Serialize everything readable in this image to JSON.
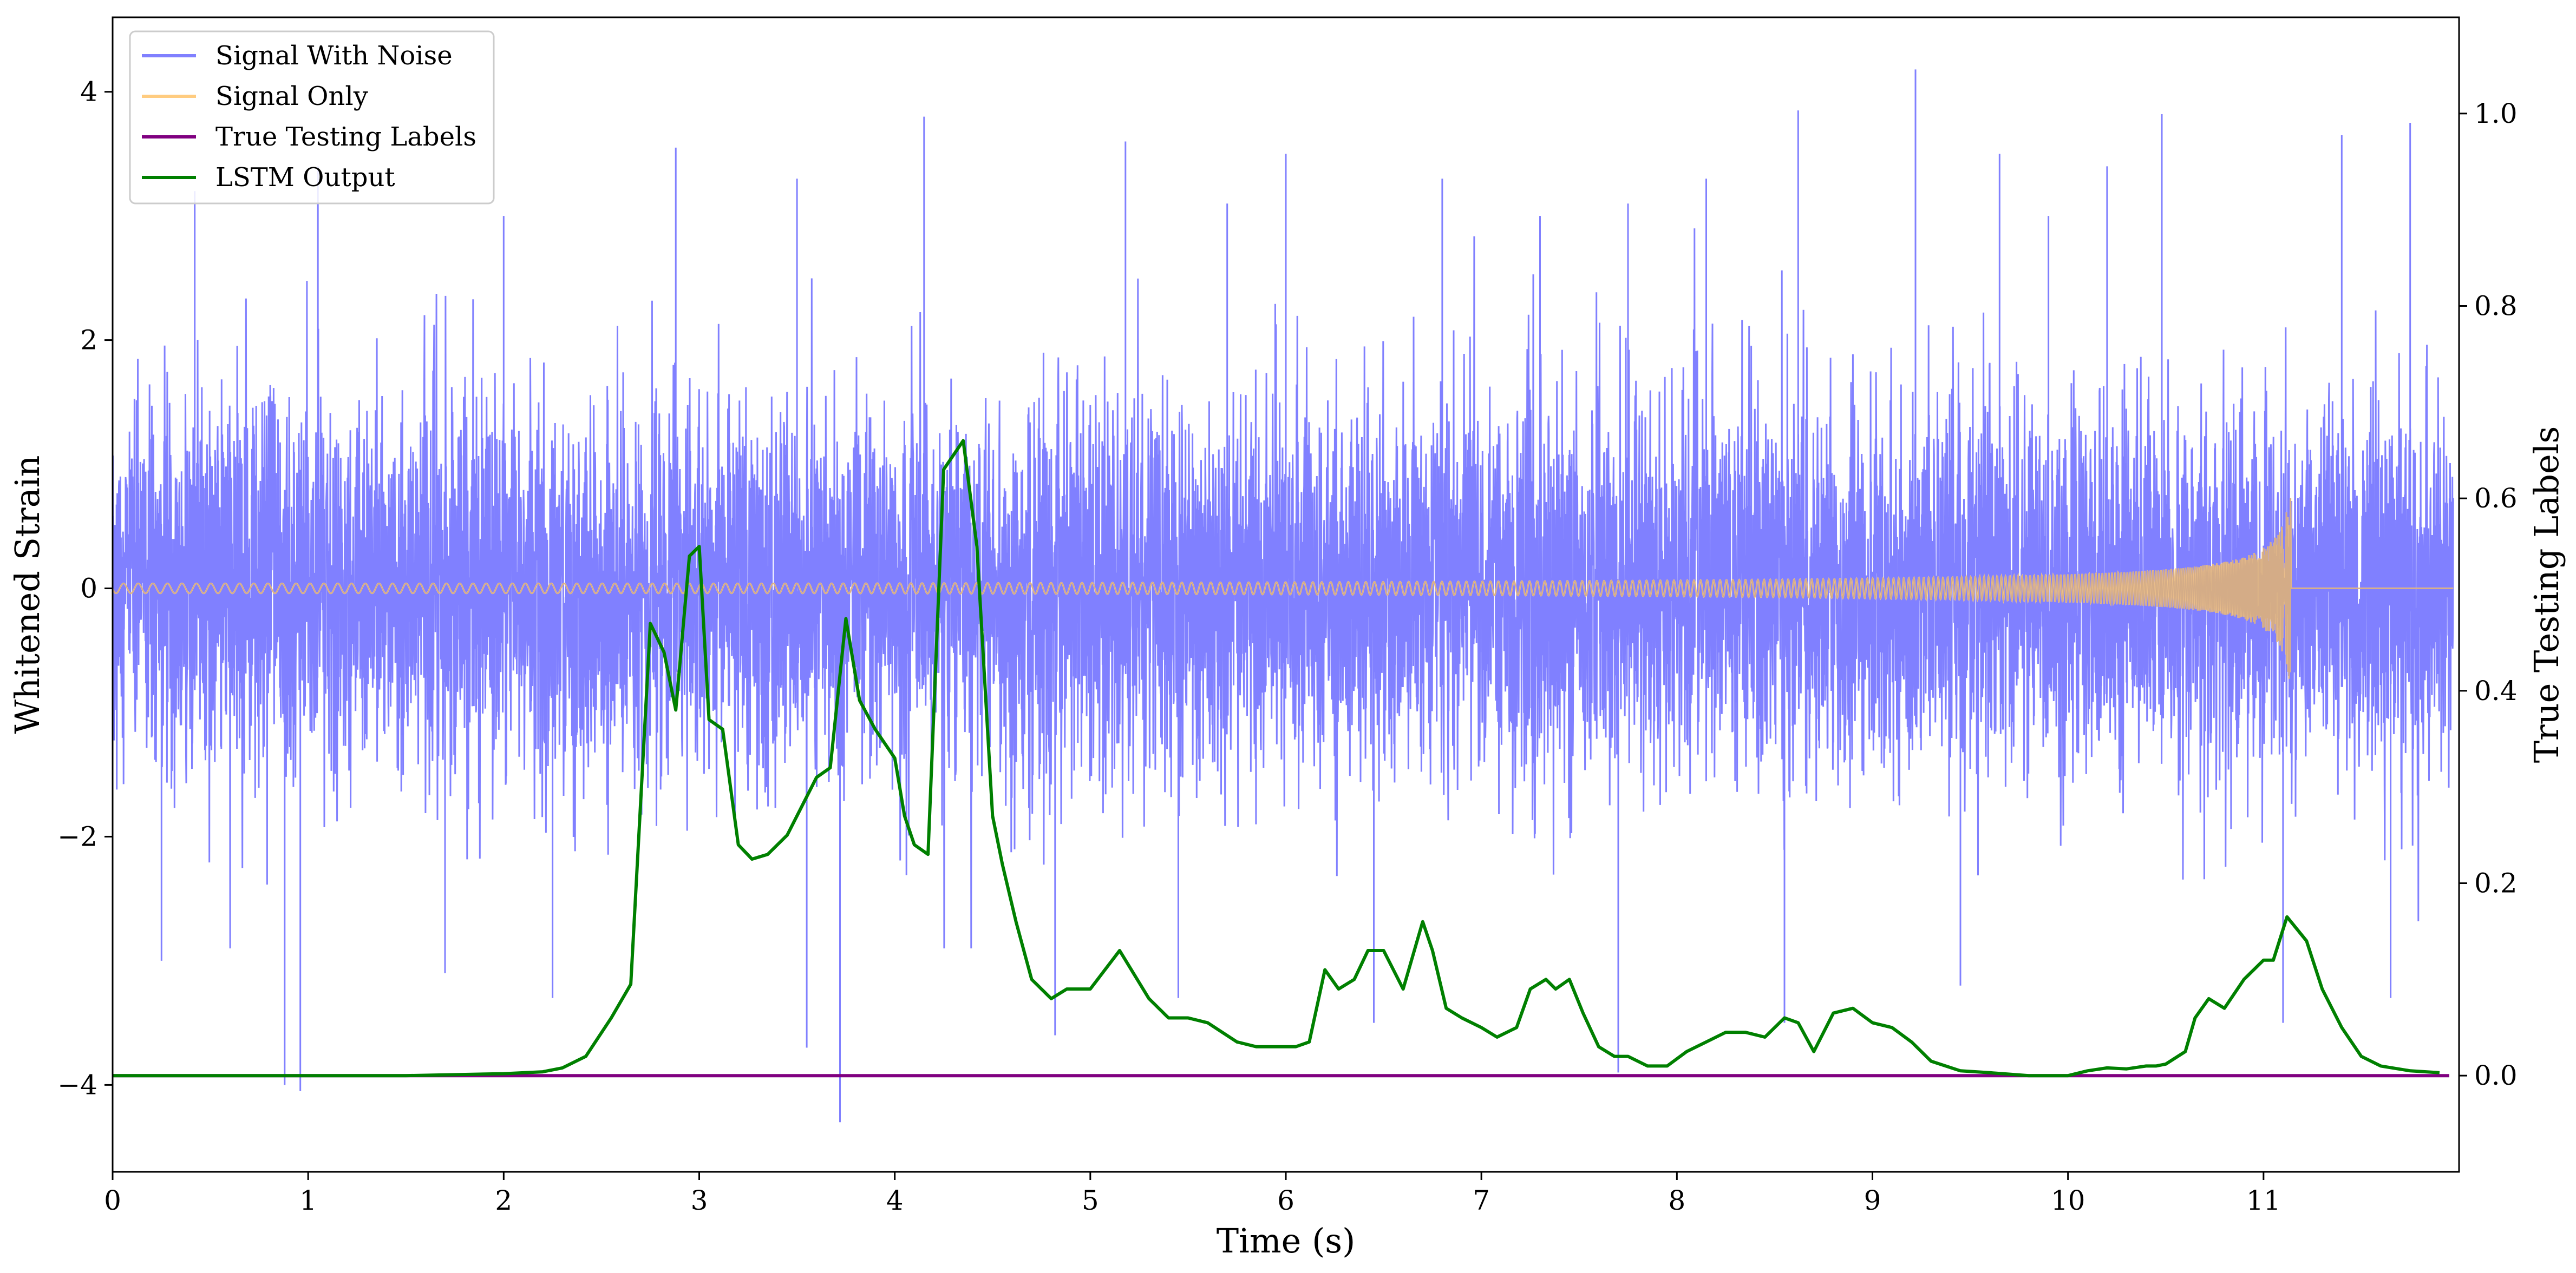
{
  "chart_data": {
    "type": "line",
    "title": "",
    "xlabel": "Time (s)",
    "ylabel": "Whitened Strain",
    "y2label": "True Testing Labels",
    "xlim": [
      0,
      12
    ],
    "ylim": [
      -4.7,
      4.6
    ],
    "y2lim": [
      -0.1,
      1.1
    ],
    "x_ticks": [
      0,
      1,
      2,
      3,
      4,
      5,
      6,
      7,
      8,
      9,
      10,
      11
    ],
    "y_ticks": [
      -4,
      -2,
      0,
      2,
      4
    ],
    "y_tick_labels": [
      "−4",
      "−2",
      "0",
      "2",
      "4"
    ],
    "y2_ticks": [
      0.0,
      0.2,
      0.4,
      0.6,
      0.8,
      1.0
    ],
    "y2_tick_labels": [
      "0.0",
      "0.2",
      "0.4",
      "0.6",
      "0.8",
      "1.0"
    ],
    "grid": false,
    "legend_position": "top-left",
    "series": [
      {
        "name": "Signal With Noise",
        "axis": "left",
        "color": "#8080ff",
        "description_values": "dense whitened noise, roughly |y| < 2 with sparse spikes up to 4.2 and down to -4.3",
        "noise_std": 0.75,
        "spikes": [
          [
            0.88,
            -4.0
          ],
          [
            0.96,
            -4.05
          ],
          [
            3.72,
            -4.3
          ],
          [
            9.22,
            4.18
          ],
          [
            4.15,
            3.8
          ],
          [
            8.62,
            3.85
          ],
          [
            10.48,
            3.82
          ],
          [
            11.75,
            3.75
          ],
          [
            7.7,
            -3.9
          ],
          [
            5.18,
            3.6
          ],
          [
            2.88,
            3.55
          ],
          [
            6.0,
            3.5
          ],
          [
            9.65,
            3.5
          ],
          [
            11.4,
            3.65
          ],
          [
            1.05,
            3.4
          ],
          [
            0.42,
            3.2
          ],
          [
            3.5,
            3.3
          ],
          [
            7.75,
            3.1
          ],
          [
            8.15,
            3.3
          ],
          [
            10.2,
            3.4
          ],
          [
            3.55,
            -3.7
          ],
          [
            4.82,
            -3.6
          ],
          [
            6.45,
            -3.5
          ],
          [
            8.55,
            -3.5
          ],
          [
            11.1,
            -3.5
          ],
          [
            2.25,
            -3.3
          ],
          [
            0.25,
            -3.0
          ],
          [
            1.7,
            -3.1
          ],
          [
            5.45,
            -3.3
          ],
          [
            9.45,
            -3.2
          ],
          [
            11.65,
            -3.3
          ],
          [
            2.0,
            3.0
          ],
          [
            5.7,
            3.1
          ],
          [
            6.8,
            3.3
          ],
          [
            7.3,
            3.0
          ],
          [
            9.9,
            3.0
          ]
        ]
      },
      {
        "name": "Signal Only",
        "axis": "left",
        "color": "#ffcc80",
        "description_values": "chirp with amplitude ~0.05 growing to ~0.85 at x=11.14, then zero",
        "merger_time": 11.14,
        "peak_amplitude": 0.85
      },
      {
        "name": "True Testing Labels",
        "axis": "right",
        "color": "#800080",
        "x": [
          0,
          11.95
        ],
        "y": [
          0.0,
          0.0
        ]
      },
      {
        "name": "LSTM Output",
        "axis": "right",
        "color": "#008000",
        "x": [
          0,
          0.5,
          1.0,
          1.5,
          2.0,
          2.2,
          2.3,
          2.42,
          2.55,
          2.65,
          2.75,
          2.82,
          2.88,
          2.95,
          3.0,
          3.05,
          3.12,
          3.2,
          3.27,
          3.35,
          3.45,
          3.5,
          3.6,
          3.67,
          3.75,
          3.82,
          3.9,
          4.0,
          4.05,
          4.1,
          4.17,
          4.25,
          4.35,
          4.42,
          4.5,
          4.55,
          4.62,
          4.7,
          4.8,
          4.88,
          5.0,
          5.15,
          5.3,
          5.4,
          5.5,
          5.6,
          5.75,
          5.85,
          5.95,
          6.05,
          6.12,
          6.2,
          6.27,
          6.35,
          6.42,
          6.5,
          6.6,
          6.7,
          6.75,
          6.82,
          6.9,
          7.0,
          7.08,
          7.18,
          7.25,
          7.33,
          7.38,
          7.45,
          7.52,
          7.6,
          7.68,
          7.75,
          7.85,
          7.95,
          8.05,
          8.15,
          8.25,
          8.35,
          8.45,
          8.55,
          8.62,
          8.7,
          8.8,
          8.9,
          9.0,
          9.1,
          9.2,
          9.3,
          9.45,
          9.6,
          9.8,
          10.0,
          10.1,
          10.2,
          10.3,
          10.4,
          10.45,
          10.5,
          10.6,
          10.65,
          10.72,
          10.8,
          10.9,
          11.0,
          11.05,
          11.12,
          11.22,
          11.3,
          11.4,
          11.5,
          11.6,
          11.75,
          11.9
        ],
        "y": [
          0.0,
          0.0,
          0.0,
          0.0,
          0.002,
          0.004,
          0.008,
          0.02,
          0.06,
          0.095,
          0.47,
          0.44,
          0.38,
          0.54,
          0.55,
          0.37,
          0.36,
          0.24,
          0.225,
          0.23,
          0.25,
          0.27,
          0.31,
          0.32,
          0.475,
          0.39,
          0.36,
          0.33,
          0.27,
          0.24,
          0.23,
          0.63,
          0.66,
          0.55,
          0.27,
          0.22,
          0.16,
          0.1,
          0.08,
          0.09,
          0.09,
          0.13,
          0.08,
          0.06,
          0.06,
          0.055,
          0.035,
          0.03,
          0.03,
          0.03,
          0.035,
          0.11,
          0.09,
          0.1,
          0.13,
          0.13,
          0.09,
          0.16,
          0.13,
          0.07,
          0.06,
          0.05,
          0.04,
          0.05,
          0.09,
          0.1,
          0.09,
          0.1,
          0.065,
          0.03,
          0.02,
          0.02,
          0.01,
          0.01,
          0.025,
          0.035,
          0.045,
          0.045,
          0.04,
          0.06,
          0.055,
          0.025,
          0.065,
          0.07,
          0.055,
          0.05,
          0.035,
          0.015,
          0.005,
          0.003,
          0.0,
          0.0,
          0.005,
          0.008,
          0.007,
          0.01,
          0.01,
          0.012,
          0.025,
          0.06,
          0.08,
          0.07,
          0.1,
          0.12,
          0.12,
          0.165,
          0.14,
          0.09,
          0.05,
          0.02,
          0.01,
          0.005,
          0.003
        ]
      }
    ]
  }
}
